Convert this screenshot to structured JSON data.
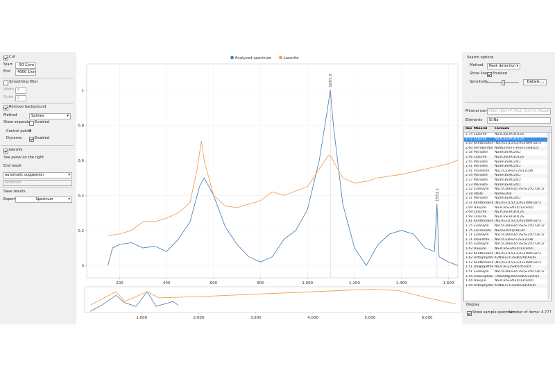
{
  "left_panel": {
    "cut": "Cut",
    "start_label": "Start",
    "start_value": "50 1/cm",
    "end_label": "End",
    "end_value": "4000 1/cm",
    "smoothing": "Smoothing filter",
    "width_label": "Width",
    "width_value": "5",
    "order_label": "Order",
    "order_value": "2",
    "remove_background": "Remove background",
    "method_label": "Method",
    "method_value": "Splines",
    "show_separately": "Show separately",
    "enabled_1": "Enabled",
    "control_points_label": "Control points",
    "control_points_value": "8",
    "dynamic": "Dynamic",
    "enabled_2": "Enabled",
    "identify": "Identify",
    "see_panel": "See panel on the right.",
    "end_result": "End result",
    "end_result_value": "automatic suggestion",
    "end_result_name": "Dolomite",
    "save_results": "Save results",
    "export_label": "Export",
    "export_value": "Spectrum"
  },
  "chart_data": [
    {
      "type": "line",
      "legend": "top",
      "grid": true,
      "xlim": [
        60,
        1640
      ],
      "ylim": [
        -0.07,
        1.15
      ],
      "xticks": [
        200,
        400,
        600,
        800,
        {
          "value": 1000,
          "label": "1.000"
        },
        {
          "value": 1200,
          "label": "1.200"
        },
        {
          "value": 1400,
          "label": "1.400"
        },
        {
          "value": 1600,
          "label": "1.600"
        }
      ],
      "yticks": [
        0,
        {
          "value": 0.2,
          "label": "0,2"
        },
        {
          "value": 0.4,
          "label": "0,4"
        },
        {
          "value": 0.6,
          "label": "0,6"
        },
        {
          "value": 0.8,
          "label": "0,8"
        },
        1
      ],
      "annotations": [
        {
          "text": "1097.3",
          "x": 1097.3,
          "y": 1.0
        },
        {
          "text": "1551.1",
          "x": 1551.1,
          "y": 0.35
        }
      ],
      "series": [
        {
          "name": "Analyzed spectrum",
          "color": "#3c78b4",
          "x": [
            150,
            170,
            200,
            250,
            300,
            350,
            400,
            450,
            500,
            540,
            560,
            600,
            650,
            700,
            750,
            800,
            850,
            900,
            950,
            1000,
            1050,
            1080,
            1097,
            1110,
            1150,
            1200,
            1250,
            1300,
            1350,
            1400,
            1450,
            1500,
            1540,
            1551,
            1560,
            1600,
            1640
          ],
          "values": [
            0.0,
            0.1,
            0.12,
            0.13,
            0.1,
            0.11,
            0.08,
            0.15,
            0.25,
            0.45,
            0.5,
            0.4,
            0.22,
            0.12,
            0.05,
            0.02,
            0.05,
            0.15,
            0.2,
            0.32,
            0.6,
            0.85,
            1.0,
            0.8,
            0.35,
            0.1,
            0.0,
            0.12,
            0.18,
            0.2,
            0.18,
            0.1,
            0.08,
            0.35,
            0.05,
            0.02,
            0.0
          ]
        },
        {
          "name": "Lazurite",
          "color": "#f0963c",
          "x": [
            150,
            200,
            250,
            300,
            350,
            400,
            450,
            500,
            530,
            548,
            560,
            600,
            650,
            700,
            800,
            850,
            900,
            1000,
            1050,
            1090,
            1100,
            1150,
            1200,
            1250,
            1300,
            1400,
            1500,
            1600,
            1640
          ],
          "values": [
            0.17,
            0.18,
            0.2,
            0.25,
            0.25,
            0.27,
            0.3,
            0.36,
            0.55,
            0.71,
            0.6,
            0.4,
            0.34,
            0.33,
            0.37,
            0.42,
            0.4,
            0.45,
            0.55,
            0.63,
            0.62,
            0.5,
            0.47,
            0.48,
            0.5,
            0.52,
            0.55,
            0.58,
            0.6
          ]
        }
      ]
    },
    {
      "type": "line",
      "xlim": [
        0,
        6600
      ],
      "ylim": [
        0,
        1.05
      ],
      "xticks": [
        {
          "value": 1000,
          "label": "1.000"
        },
        {
          "value": 2000,
          "label": "2.000"
        },
        {
          "value": 3000,
          "label": "3.000"
        },
        {
          "value": 4000,
          "label": "4.000"
        },
        {
          "value": 5000,
          "label": "5.000"
        },
        {
          "value": 6000,
          "label": "6.000"
        }
      ],
      "series": [
        {
          "name": "Analyzed spectrum",
          "color": "#3c78b4",
          "x": [
            100,
            300,
            548,
            700,
            900,
            1097,
            1250,
            1400,
            1551,
            1640
          ],
          "values": [
            0.05,
            0.3,
            0.7,
            0.4,
            0.25,
            0.85,
            0.25,
            0.35,
            0.45,
            0.3
          ]
        },
        {
          "name": "Lazurite",
          "color": "#f0963c",
          "x": [
            100,
            548,
            700,
            1097,
            1300,
            2000,
            3000,
            4000,
            5000,
            5500,
            6000,
            6500
          ],
          "values": [
            0.3,
            0.85,
            0.45,
            0.85,
            0.6,
            0.65,
            0.75,
            0.85,
            0.95,
            0.9,
            0.6,
            0.35
          ]
        }
      ]
    }
  ],
  "right_panel": {
    "search_options": "Search options",
    "method_label": "Method",
    "method_value": "Peak detection",
    "show_lines": "Show lines",
    "enabled": "Enabled",
    "sensitivity": "Sensitivity",
    "details": "Details ...",
    "mineral_name": "Mineral name",
    "filter_placeholder": "Filter (Ctrl+F: First, Ctrl+G: Result)",
    "elements": "Elements",
    "elements_value": "Si,Na",
    "display": "Display",
    "show_sample": "Show sample spectrum",
    "number_items": "Number of items: 4.777"
  },
  "table": {
    "columns": [
      "Res",
      "Mineral",
      "Formula"
    ],
    "selected": 1,
    "rows": [
      [
        "2.74",
        "Lazurite",
        "Na3CaSi3Al3O12S"
      ],
      [
        "2.72",
        "Lazurite",
        "Na3CaSi3Al3O12S"
      ],
      [
        "2.63",
        "Kentbrooksite",
        "(Na,REE)15(Ca,REE)6Mn3Zr3"
      ],
      [
        "2.60",
        "Ferrokentbrooksite",
        "NaNa2(Fe2+,Fe3+)3Si8O22"
      ],
      [
        "2.58",
        "Marialite",
        "Na4Al3Si9O24Cl"
      ],
      [
        "2.46",
        "Lazurite",
        "Na3CaSi3Al3O12S"
      ],
      [
        "2.45",
        "Marialite",
        "Na4Al3Si9O24Cl"
      ],
      [
        "2.41",
        "Marialite",
        "Na4Al3Si9O24Cl"
      ],
      [
        "2.41",
        "Imandrite",
        "Na12Ca3Fe2+2Si12O36"
      ],
      [
        "2.34",
        "Marialite",
        "Na4Al3Si9O24Cl"
      ],
      [
        "2.27",
        "Marialite",
        "Na4Al3Si9O24Cl"
      ],
      [
        "2.23",
        "Marialite",
        "Na4Al3Si9O24Cl"
      ],
      [
        "2.22",
        "Eudialyte",
        "Na15Ca6Fe3Zr3Si(Si25O73)Cl2"
      ],
      [
        "2.18",
        "Albite",
        "NaAlSi3O8"
      ],
      [
        "2.11",
        "Marialite",
        "Na4Al3Si9O24Cl"
      ],
      [
        "2.11",
        "Kentbrooksite",
        "(Na,REE)15(Ca,REE)6Mn3Zr3"
      ],
      [
        "2.09",
        "Hauyne",
        "Na3Ca(Si3Al3)O12(SO4)"
      ],
      [
        "2.09",
        "Lazurite",
        "Na3CaSi3Al3O12S"
      ],
      [
        "1.99",
        "Lazurite",
        "Na3CaSi3Al3O12S"
      ],
      [
        "1.81",
        "Kentbrooksite",
        "(Na,REE)15(Ca,REE)6Mn3Zr3"
      ],
      [
        "1.75",
        "Eudialyte",
        "Na15Ca6Fe3Zr3Si(Si25O73)Cl2"
      ],
      [
        "1.75",
        "Ericssonite",
        "Na2(Si2O5)(OH)2O"
      ],
      [
        "1.71",
        "Eudialyte",
        "Na15Ca6Fe3Zr3Si(Si25O73)Cl2"
      ],
      [
        "1.71",
        "Imandrite",
        "Na12Ca3Fe2+2Si12O36"
      ],
      [
        "1.65",
        "Eudialyte",
        "Na15Ca6Fe3Zr3Si(Si25O73)Cl2"
      ],
      [
        "1.62",
        "Hauyne",
        "Na3Ca(Si3Al3)O12(SO4)"
      ],
      [
        "1.62",
        "Kentbrooksite",
        "(Na,REE)15(Ca,REE)6Mn3Zr3"
      ],
      [
        "1.62",
        "Astrophyllite",
        "K2NaFe7Ti2Si8O26(OH)4F"
      ],
      [
        "1.52",
        "Kentbrooksite",
        "(Na,REE)15(Ca,REE)6Mn3Zr3"
      ],
      [
        "1.51",
        "Diegogattaite",
        "Na2CaCu2Si8O20·H2O"
      ],
      [
        "1.51",
        "Eudialyte",
        "Na15Ca6Fe3Zr3Si(Si25O73)Cl2"
      ],
      [
        "1.44",
        "Glaucophane",
        "☐Na2(Mg3Al2)Si8O22(OH)2"
      ],
      [
        "1.44",
        "Hauyne",
        "Na3Ca(Si3Al3)O12(SO4)"
      ],
      [
        "1.44",
        "Astrophyllite",
        "K2NaFe7Ti2Si8O26(OH)4F"
      ]
    ]
  }
}
